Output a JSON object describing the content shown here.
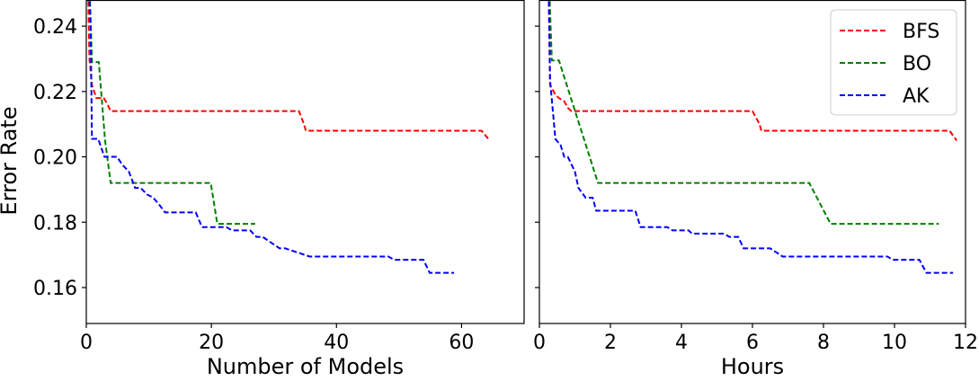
{
  "colors": {
    "BFS": "#ff0000",
    "BO": "#008000",
    "AK": "#0000ff",
    "axes": "#000000",
    "background": "#ffffff"
  },
  "chart_data": [
    {
      "type": "line",
      "xlabel": "Number of Models",
      "ylabel": "Error Rate",
      "xlim": [
        0,
        70
      ],
      "ylim": [
        0.149,
        0.248
      ],
      "xticks": [
        0,
        20,
        40,
        60
      ],
      "xtick_labels": [
        "0",
        "20",
        "40",
        "60"
      ],
      "yticks": [
        0.16,
        0.18,
        0.2,
        0.22,
        0.24
      ],
      "ytick_labels": [
        "0.16",
        "0.18",
        "0.20",
        "0.22",
        "0.24"
      ],
      "grid": false,
      "series": [
        {
          "name": "BFS",
          "style": "dashed",
          "color": "#ff0000",
          "x": [
            0.2,
            0.5,
            0.9,
            1.6,
            2.8,
            3.4,
            3.9,
            34.0,
            34.8,
            35.1,
            63.2,
            64.5
          ],
          "y": [
            0.26,
            0.23,
            0.222,
            0.218,
            0.218,
            0.216,
            0.214,
            0.214,
            0.21,
            0.208,
            0.208,
            0.205
          ]
        },
        {
          "name": "BO",
          "style": "dashed",
          "color": "#008000",
          "x": [
            0.4,
            0.9,
            2.0,
            3.0,
            3.9,
            19.9,
            20.9,
            21.0,
            27.0
          ],
          "y": [
            0.26,
            0.229,
            0.229,
            0.205,
            0.192,
            0.192,
            0.18,
            0.1795,
            0.1795
          ]
        },
        {
          "name": "AK",
          "style": "dashed",
          "color": "#0000ff",
          "x": [
            0.2,
            0.7,
            0.9,
            1.9,
            2.9,
            4.9,
            5.8,
            6.8,
            7.8,
            8.7,
            9.7,
            10.7,
            11.6,
            12.6,
            17.5,
            18.5,
            19.4,
            22.4,
            23.3,
            26.2,
            27.2,
            28.2,
            30.9,
            31.8,
            35.7,
            36.6,
            48.3,
            49.2,
            53.9,
            54.9,
            58.8
          ],
          "y": [
            0.26,
            0.24,
            0.2055,
            0.2055,
            0.2,
            0.2,
            0.1975,
            0.1955,
            0.1905,
            0.1905,
            0.1885,
            0.1875,
            0.1855,
            0.183,
            0.183,
            0.1785,
            0.1785,
            0.1785,
            0.1775,
            0.1775,
            0.1755,
            0.1755,
            0.172,
            0.172,
            0.1695,
            0.1695,
            0.1695,
            0.1685,
            0.1685,
            0.1645,
            0.1645
          ]
        }
      ]
    },
    {
      "type": "line",
      "xlabel": "Hours",
      "ylabel": "",
      "xlim": [
        0,
        12
      ],
      "ylim": [
        0.149,
        0.248
      ],
      "xticks": [
        0,
        2,
        4,
        6,
        8,
        10,
        12
      ],
      "xtick_labels": [
        "0",
        "2",
        "4",
        "6",
        "8",
        "10",
        "12"
      ],
      "yticks": [
        0.16,
        0.18,
        0.2,
        0.22,
        0.24
      ],
      "ytick_labels": [
        "",
        "",
        "",
        "",
        ""
      ],
      "grid": false,
      "legend": {
        "position": "top-right",
        "entries": [
          "BFS",
          "BO",
          "AK"
        ]
      },
      "series": [
        {
          "name": "BFS",
          "style": "dashed",
          "color": "#ff0000",
          "x": [
            0.25,
            0.3,
            0.45,
            0.55,
            0.7,
            0.8,
            0.9,
            6.0,
            6.2,
            6.25,
            11.55,
            11.75
          ],
          "y": [
            0.26,
            0.222,
            0.219,
            0.218,
            0.217,
            0.215,
            0.214,
            0.214,
            0.21,
            0.208,
            0.208,
            0.205
          ]
        },
        {
          "name": "BO",
          "style": "dashed",
          "color": "#008000",
          "x": [
            0.25,
            0.35,
            0.55,
            1.65,
            7.6,
            8.2,
            11.25
          ],
          "y": [
            0.26,
            0.2295,
            0.2295,
            0.192,
            0.192,
            0.1795,
            0.1795
          ]
        },
        {
          "name": "AK",
          "style": "dashed",
          "color": "#0000ff",
          "x": [
            0.25,
            0.3,
            0.45,
            0.6,
            0.7,
            0.8,
            1.0,
            1.1,
            1.3,
            1.5,
            1.6,
            2.7,
            2.85,
            3.6,
            3.75,
            4.2,
            4.3,
            5.2,
            5.35,
            5.6,
            5.75,
            6.5,
            6.85,
            9.8,
            9.95,
            10.7,
            10.9,
            11.65
          ],
          "y": [
            0.26,
            0.2235,
            0.2055,
            0.2035,
            0.2,
            0.2,
            0.1955,
            0.1905,
            0.1875,
            0.1875,
            0.1835,
            0.1835,
            0.1785,
            0.1785,
            0.1775,
            0.1775,
            0.1765,
            0.1765,
            0.1755,
            0.1755,
            0.172,
            0.172,
            0.1695,
            0.1695,
            0.1685,
            0.1685,
            0.1645,
            0.1645
          ]
        }
      ]
    }
  ]
}
